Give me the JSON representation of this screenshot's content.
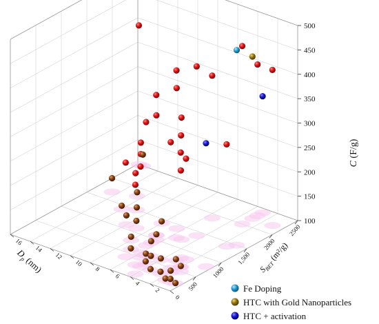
{
  "chart_data": {
    "type": "scatter",
    "projection": "3d",
    "title": "",
    "axes": {
      "x": {
        "label_main": "D",
        "label_sub": "p",
        "label_unit": " (nm)",
        "range": [
          0,
          16
        ],
        "ticks": [
          0,
          2,
          4,
          6,
          8,
          10,
          12,
          14,
          16
        ]
      },
      "y": {
        "label_main": "S",
        "label_sub": "BET",
        "label_unit": " (m²/g)",
        "range": [
          0,
          2500
        ],
        "ticks": [
          500,
          1000,
          1500,
          2000,
          2500
        ],
        "tick_labels": [
          "500",
          "1000",
          "1,500",
          "2000",
          "2500"
        ]
      },
      "z": {
        "label_main": "C",
        "label_unit": " (F/g)",
        "range": [
          100,
          500
        ],
        "ticks": [
          100,
          150,
          200,
          250,
          300,
          350,
          400,
          450,
          500
        ]
      }
    },
    "grid": true,
    "legend_position": "bottom-right",
    "legend": [
      {
        "name": "Fe Doping",
        "color": "#2a9fd6"
      },
      {
        "name": "HTC with Gold Nanoparticles",
        "color": "#9a7a12"
      },
      {
        "name": "HTC + activation",
        "color": "#1a1ad0"
      }
    ],
    "series": [
      {
        "name": "",
        "color": "#d11515",
        "points": [
          [
            15.9,
            2500,
            385
          ],
          [
            1.0,
            2200,
            419
          ],
          [
            3.0,
            2300,
            410
          ],
          [
            5.5,
            1200,
            443
          ],
          [
            4.5,
            1400,
            447
          ],
          [
            3.0,
            2000,
            465
          ],
          [
            6.5,
            1000,
            397
          ],
          [
            6.5,
            1400,
            388
          ],
          [
            5.5,
            1900,
            392
          ],
          [
            6.5,
            800,
            353
          ],
          [
            5.0,
            1200,
            350
          ],
          [
            7.0,
            1100,
            346
          ],
          [
            6.0,
            600,
            326
          ],
          [
            5.5,
            500,
            312
          ],
          [
            4.5,
            300,
            305
          ],
          [
            3.0,
            800,
            351
          ],
          [
            2.5,
            800,
            307
          ],
          [
            2.0,
            600,
            298
          ],
          [
            2.5,
            500,
            358
          ],
          [
            1.5,
            500,
            344
          ],
          [
            1.5,
            1400,
            309
          ],
          [
            4.0,
            100,
            283
          ],
          [
            5.0,
            300,
            288
          ],
          [
            6.5,
            400,
            293
          ]
        ]
      },
      {
        "name": "",
        "color": "#7a3b12",
        "points": [
          [
            15.5,
            2500,
            123
          ],
          [
            14.5,
            1700,
            128
          ],
          [
            12.5,
            1800,
            108
          ],
          [
            12.0,
            1400,
            107
          ],
          [
            11.0,
            1500,
            105
          ],
          [
            10.0,
            1100,
            119
          ],
          [
            9.0,
            1100,
            115
          ],
          [
            8.0,
            1400,
            104
          ],
          [
            8.0,
            800,
            107
          ],
          [
            7.0,
            1100,
            102
          ],
          [
            6.5,
            900,
            103
          ],
          [
            7.0,
            600,
            102
          ],
          [
            5.5,
            600,
            102
          ],
          [
            4.5,
            400,
            105
          ],
          [
            5.0,
            600,
            101
          ],
          [
            4.0,
            600,
            103
          ],
          [
            3.0,
            700,
            103
          ],
          [
            3.5,
            300,
            102
          ],
          [
            2.5,
            300,
            104
          ],
          [
            2.0,
            600,
            102
          ],
          [
            2.0,
            400,
            104
          ],
          [
            1.5,
            200,
            103
          ],
          [
            1.0,
            200,
            106
          ],
          [
            0.5,
            200,
            101
          ]
        ]
      },
      {
        "name": "Fe Doping",
        "color": "#2a9fd6",
        "points": [
          [
            1.0,
            1500,
            500
          ]
        ]
      },
      {
        "name": "HTC with Gold Nanoparticles",
        "color": "#9a7a12",
        "points": [
          [
            3.0,
            2200,
            432
          ]
        ]
      },
      {
        "name": "HTC + activation",
        "color": "#1a1ad0",
        "points": [
          [
            0.5,
            800,
            353
          ],
          [
            3.0,
            2400,
            339
          ]
        ]
      }
    ]
  }
}
